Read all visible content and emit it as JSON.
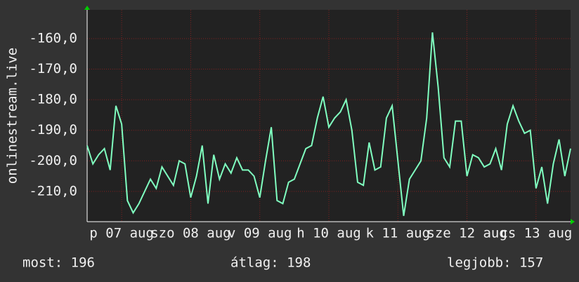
{
  "chart_data": {
    "type": "line",
    "y_label": "onlinestream.live",
    "x": [
      0,
      2,
      4,
      6,
      8,
      10,
      12,
      14,
      16,
      18,
      20,
      22,
      24,
      26,
      28,
      30,
      32,
      34,
      36,
      38,
      40,
      42,
      44,
      46,
      48,
      50,
      52,
      54,
      56,
      58,
      60,
      62,
      64,
      66,
      68,
      70,
      72,
      74,
      76,
      78,
      80,
      82,
      84,
      86,
      88,
      90,
      92,
      94,
      96,
      98,
      100,
      102,
      104,
      106,
      108,
      110,
      112,
      114,
      116,
      118,
      120,
      122,
      124,
      126,
      128,
      130,
      132,
      134,
      136,
      138,
      140,
      142,
      144,
      146,
      148,
      150,
      152,
      154,
      156,
      158,
      160,
      162,
      164,
      166,
      168
    ],
    "series": [
      {
        "name": "onlinestream.live",
        "color": "#80ffc0",
        "values": [
          -195,
          -201,
          -198,
          -196,
          -203,
          -182,
          -188,
          -213,
          -217,
          -214,
          -210,
          -206,
          -209,
          -202,
          -205,
          -208,
          -200,
          -201,
          -212,
          -205,
          -195,
          -214,
          -198,
          -206,
          -201,
          -204,
          -199,
          -203,
          -203,
          -205,
          -212,
          -200,
          -189,
          -213,
          -214,
          -207,
          -206,
          -201,
          -196,
          -195,
          -186,
          -179,
          -189,
          -186,
          -184,
          -180,
          -190,
          -207,
          -208,
          -194,
          -203,
          -202,
          -186,
          -182,
          -200,
          -218,
          -206,
          -203,
          -200,
          -186,
          -158,
          -176,
          -199,
          -202,
          -187,
          -187,
          -205,
          -198,
          -199,
          -202,
          -201,
          -196,
          -203,
          -188,
          -182,
          -187,
          -191,
          -190,
          -209,
          -202,
          -214,
          -201,
          -193,
          -205,
          -196
        ]
      }
    ],
    "xlim": [
      0,
      168
    ],
    "xticks": [
      {
        "value": 12,
        "label": "p 07 aug"
      },
      {
        "value": 36,
        "label": "szo 08 aug"
      },
      {
        "value": 60,
        "label": "v 09 aug"
      },
      {
        "value": 84,
        "label": "h 10 aug"
      },
      {
        "value": 108,
        "label": "k 11 aug"
      },
      {
        "value": 132,
        "label": "sze 12 aug"
      },
      {
        "value": 156,
        "label": "cs 13 aug"
      }
    ],
    "ylim": [
      -219.9,
      -150.6
    ],
    "yticks": [
      {
        "value": -210,
        "label": "-210,0"
      },
      {
        "value": -200,
        "label": "-200,0"
      },
      {
        "value": -190,
        "label": "-190,0"
      },
      {
        "value": -180,
        "label": "-180,0"
      },
      {
        "value": -170,
        "label": "-170,0"
      },
      {
        "value": -160,
        "label": "-160,0"
      }
    ],
    "grid": true,
    "footer": [
      "most: 196",
      "átlag: 198",
      "legjobb: 157"
    ]
  }
}
